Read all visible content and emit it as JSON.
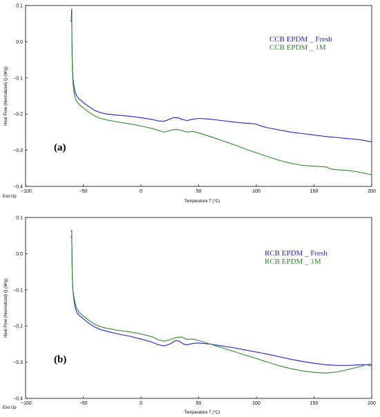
{
  "chart_data": [
    {
      "type": "line",
      "panel_label": "(a)",
      "xlabel": "Temperature T (°C)",
      "ylabel": "Heat Flow (Normalized) Q (W/g)",
      "exo_label": "Exo Up",
      "xlim": [
        -100,
        200
      ],
      "ylim": [
        -0.4,
        0.1
      ],
      "xticks": [
        "−100",
        "−50",
        "0",
        "50",
        "100",
        "150",
        "200"
      ],
      "yticks": [
        "0.1",
        "0.0",
        "−0.1",
        "−0.2",
        "−0.3",
        "−0.4"
      ],
      "legend_position": "top-right",
      "series": [
        {
          "name": "CCB EPDM _ Fresh",
          "color": "#1f1fe6",
          "x": [
            -60.5,
            -60,
            -59.8,
            -59.5,
            -59,
            -58,
            -57,
            -56,
            -55,
            -53,
            -50,
            -45,
            -40,
            -35,
            -30,
            -20,
            -10,
            0,
            10,
            15,
            20,
            25,
            28,
            32,
            36,
            40,
            45,
            50,
            60,
            70,
            80,
            90,
            95,
            100,
            105,
            110,
            120,
            130,
            140,
            150,
            160,
            170,
            180,
            190,
            200
          ],
          "y": [
            0.055,
            0.09,
            0.0,
            -0.06,
            -0.1,
            -0.125,
            -0.14,
            -0.148,
            -0.153,
            -0.16,
            -0.168,
            -0.18,
            -0.19,
            -0.196,
            -0.2,
            -0.203,
            -0.206,
            -0.21,
            -0.215,
            -0.219,
            -0.22,
            -0.214,
            -0.21,
            -0.21,
            -0.215,
            -0.218,
            -0.214,
            -0.212,
            -0.214,
            -0.218,
            -0.222,
            -0.225,
            -0.226,
            -0.228,
            -0.234,
            -0.238,
            -0.244,
            -0.25,
            -0.254,
            -0.258,
            -0.262,
            -0.265,
            -0.268,
            -0.271,
            -0.277
          ]
        },
        {
          "name": "CCB EPDM _ 1M",
          "color": "#2e8b2e",
          "x": [
            -60.5,
            -60,
            -59.8,
            -59.5,
            -59,
            -58,
            -57,
            -56,
            -55,
            -53,
            -50,
            -45,
            -40,
            -35,
            -30,
            -20,
            -10,
            0,
            10,
            15,
            20,
            25,
            28,
            32,
            36,
            40,
            45,
            50,
            60,
            70,
            80,
            90,
            100,
            110,
            120,
            130,
            140,
            150,
            160,
            165,
            170,
            180,
            190,
            200
          ],
          "y": [
            0.06,
            0.07,
            0.0,
            -0.07,
            -0.11,
            -0.14,
            -0.155,
            -0.163,
            -0.168,
            -0.175,
            -0.183,
            -0.195,
            -0.205,
            -0.212,
            -0.216,
            -0.222,
            -0.227,
            -0.233,
            -0.24,
            -0.245,
            -0.25,
            -0.246,
            -0.243,
            -0.243,
            -0.246,
            -0.25,
            -0.248,
            -0.252,
            -0.262,
            -0.273,
            -0.284,
            -0.296,
            -0.307,
            -0.318,
            -0.328,
            -0.336,
            -0.342,
            -0.344,
            -0.346,
            -0.352,
            -0.354,
            -0.356,
            -0.361,
            -0.368
          ]
        }
      ]
    },
    {
      "type": "line",
      "panel_label": "(b)",
      "xlabel": "Temperature T (°C)",
      "ylabel": "Heat Flow (Normalized) Q (W/g)",
      "exo_label": "Exo Up",
      "xlim": [
        -100,
        200
      ],
      "ylim": [
        -0.4,
        0.1
      ],
      "xticks": [
        "−100",
        "−50",
        "0",
        "50",
        "100",
        "150",
        "200"
      ],
      "yticks": [
        "0.1",
        "0.0",
        "−0.1",
        "−0.2",
        "−0.3",
        "−0.4"
      ],
      "legend_position": "top-right",
      "series": [
        {
          "name": "RCB EPDM _ Fresh",
          "color": "#1f1fe6",
          "x": [
            -60.5,
            -60,
            -59.8,
            -59.5,
            -59,
            -58,
            -57,
            -56,
            -55,
            -53,
            -50,
            -45,
            -40,
            -35,
            -30,
            -20,
            -10,
            0,
            10,
            15,
            20,
            25,
            30,
            33,
            37,
            40,
            45,
            50,
            60,
            70,
            80,
            90,
            100,
            110,
            120,
            130,
            140,
            150,
            160,
            170,
            180,
            190,
            195,
            200
          ],
          "y": [
            0.045,
            0.05,
            0.0,
            -0.06,
            -0.1,
            -0.13,
            -0.148,
            -0.158,
            -0.165,
            -0.172,
            -0.18,
            -0.193,
            -0.203,
            -0.21,
            -0.214,
            -0.222,
            -0.228,
            -0.236,
            -0.245,
            -0.252,
            -0.255,
            -0.25,
            -0.24,
            -0.242,
            -0.25,
            -0.252,
            -0.248,
            -0.247,
            -0.25,
            -0.255,
            -0.26,
            -0.266,
            -0.272,
            -0.278,
            -0.285,
            -0.292,
            -0.298,
            -0.303,
            -0.307,
            -0.309,
            -0.309,
            -0.307,
            -0.307,
            -0.31
          ]
        },
        {
          "name": "RCB EPDM _ 1M",
          "color": "#2e8b2e",
          "x": [
            -60.5,
            -60,
            -59.8,
            -59.5,
            -59,
            -58,
            -57,
            -56,
            -55,
            -53,
            -50,
            -45,
            -40,
            -35,
            -30,
            -20,
            -10,
            0,
            10,
            15,
            20,
            25,
            30,
            35,
            40,
            45,
            50,
            60,
            70,
            80,
            90,
            100,
            110,
            120,
            130,
            140,
            150,
            160,
            170,
            180,
            190,
            195,
            200
          ],
          "y": [
            0.06,
            0.065,
            0.0,
            -0.06,
            -0.1,
            -0.12,
            -0.138,
            -0.148,
            -0.155,
            -0.164,
            -0.172,
            -0.185,
            -0.195,
            -0.202,
            -0.206,
            -0.212,
            -0.216,
            -0.222,
            -0.23,
            -0.238,
            -0.242,
            -0.238,
            -0.232,
            -0.23,
            -0.237,
            -0.236,
            -0.24,
            -0.25,
            -0.26,
            -0.27,
            -0.28,
            -0.29,
            -0.3,
            -0.31,
            -0.318,
            -0.324,
            -0.328,
            -0.33,
            -0.327,
            -0.32,
            -0.312,
            -0.307,
            -0.305
          ]
        }
      ]
    }
  ]
}
